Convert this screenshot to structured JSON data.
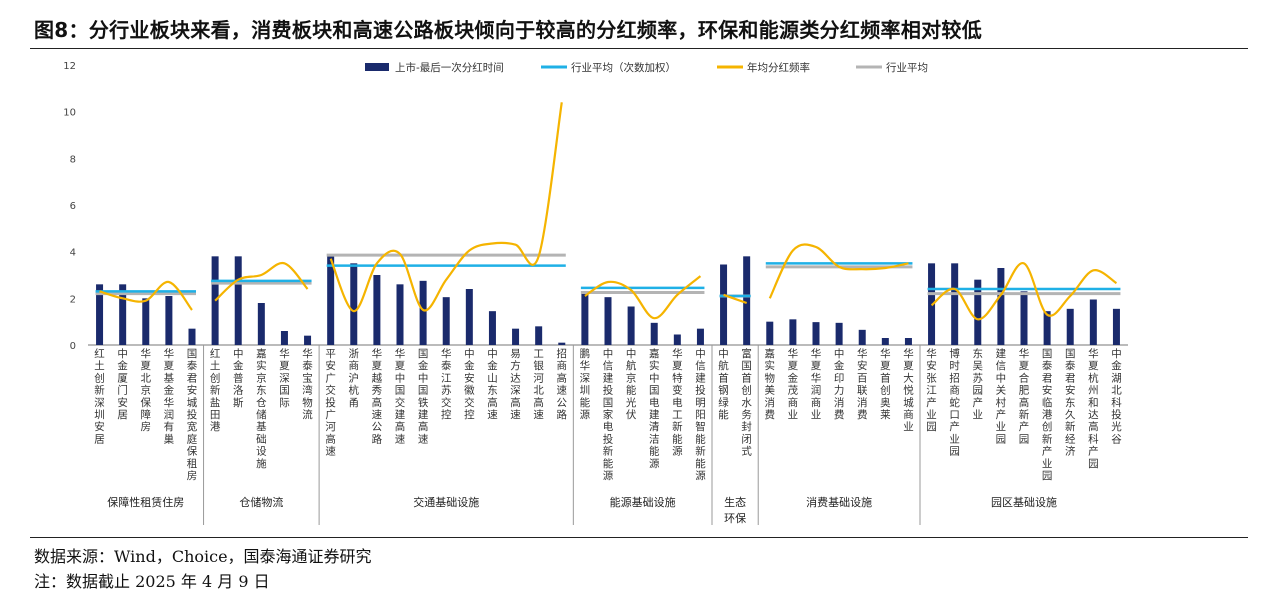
{
  "title": "图8：分行业板块来看，消费板块和高速公路板块倾向于较高的分红频率，环保和能源类分红频率相对较低",
  "source": "数据来源：Wind，Choice，国泰海通证券研究",
  "note": "注：数据截止 2025 年 4 月 9 日",
  "colors": {
    "bar": "#1a2a6c",
    "avg": "#1fb0e6",
    "freq": "#f5b400",
    "sector_avg": "#b4b4b4"
  },
  "chart_data": {
    "type": "bar",
    "ylim": [
      0,
      12
    ],
    "yticks": [
      "0",
      "2",
      "4",
      "6",
      "8",
      "10",
      "12"
    ],
    "legend": [
      {
        "name": "上市-最后一次分红时间",
        "kind": "bar"
      },
      {
        "name": "行业平均（次数加权）",
        "kind": "line-avg"
      },
      {
        "name": "年均分红频率",
        "kind": "line-freq"
      },
      {
        "name": "行业平均",
        "kind": "line-sector"
      }
    ],
    "categories": [
      "红土创新深圳安居",
      "中金厦门安居",
      "华夏北京保障房",
      "华夏基金华润有巢",
      "国泰君安城投宽庭保租房",
      "红土创新盐田港",
      "中金普洛斯",
      "嘉实京东仓储基础设施",
      "华夏深国际",
      "华泰宝湾物流",
      "平安广交投广河高速",
      "浙商沪杭甬",
      "华夏越秀高速公路",
      "华夏中国交建高速",
      "国金中国铁建高速",
      "华泰江苏交控",
      "中金安徽交控",
      "中金山东高速",
      "易方达深高速",
      "工银河北高速",
      "招商高速公路",
      "鹏华深圳能源",
      "中信建投国家电投新能源",
      "中航京能光伏",
      "嘉实中国电建清洁能源",
      "华夏特变电工新能源",
      "中信建投明阳智能新能源",
      "中航首钢绿能",
      "富国首创水务封闭式",
      "嘉实物美消费",
      "华夏金茂商业",
      "华夏华润商业",
      "中金印力消费",
      "华安百联消费",
      "华夏首创奥莱",
      "华夏大悦城商业",
      "华安张江产业园",
      "博时招商蛇口产业园",
      "东吴苏园产业",
      "建信中关村产业园",
      "华夏合肥高新产园",
      "国泰君安临港创新产业园",
      "国泰君安东久新经济",
      "华夏杭州和达高科产园",
      "中金湖北科投光谷"
    ],
    "series": [
      {
        "name": "上市-最后一次分红时间",
        "values": [
          2.6,
          2.6,
          2.0,
          2.1,
          0.7,
          3.8,
          3.8,
          1.8,
          0.6,
          0.4,
          3.8,
          3.5,
          3.0,
          2.6,
          2.75,
          2.05,
          2.4,
          1.45,
          0.7,
          0.8,
          0.1,
          2.3,
          2.05,
          1.65,
          0.95,
          0.45,
          0.7,
          3.45,
          3.8,
          1.0,
          1.1,
          0.98,
          0.95,
          0.65,
          0.3,
          0.3,
          3.5,
          3.5,
          2.8,
          3.3,
          2.3,
          1.45,
          1.55,
          1.95,
          1.55
        ]
      },
      {
        "name": "年均分红频率",
        "values": [
          2.3,
          2.0,
          1.9,
          2.7,
          1.5,
          1.9,
          2.8,
          3.0,
          3.5,
          2.4,
          3.7,
          1.45,
          3.5,
          3.9,
          1.5,
          2.8,
          4.05,
          4.35,
          4.3,
          3.8,
          10.4,
          2.1,
          2.7,
          2.35,
          1.15,
          2.15,
          2.95,
          2.15,
          1.8,
          2.0,
          4.05,
          4.2,
          3.35,
          3.25,
          3.3,
          3.5,
          1.7,
          2.4,
          1.1,
          2.15,
          3.5,
          1.3,
          2.1,
          3.2,
          2.65
        ]
      }
    ],
    "sectors": [
      {
        "name": "保障性租赁住房",
        "start": 0,
        "end": 4,
        "avg_weighted": 2.3,
        "avg": 2.2
      },
      {
        "name": "仓储物流",
        "start": 5,
        "end": 9,
        "avg_weighted": 2.75,
        "avg": 2.65
      },
      {
        "name": "交通基础设施",
        "start": 10,
        "end": 20,
        "avg_weighted": 3.4,
        "avg": 3.85
      },
      {
        "name": "能源基础设施",
        "start": 21,
        "end": 26,
        "avg_weighted": 2.45,
        "avg": 2.25
      },
      {
        "name": "生态环保",
        "start": 27,
        "end": 28,
        "avg_weighted": 2.1,
        "avg": 2.1
      },
      {
        "name": "消费基础设施",
        "start": 29,
        "end": 35,
        "avg_weighted": 3.5,
        "avg": 3.35
      },
      {
        "name": "园区基础设施",
        "start": 36,
        "end": 44,
        "avg_weighted": 2.4,
        "avg": 2.2
      }
    ]
  }
}
